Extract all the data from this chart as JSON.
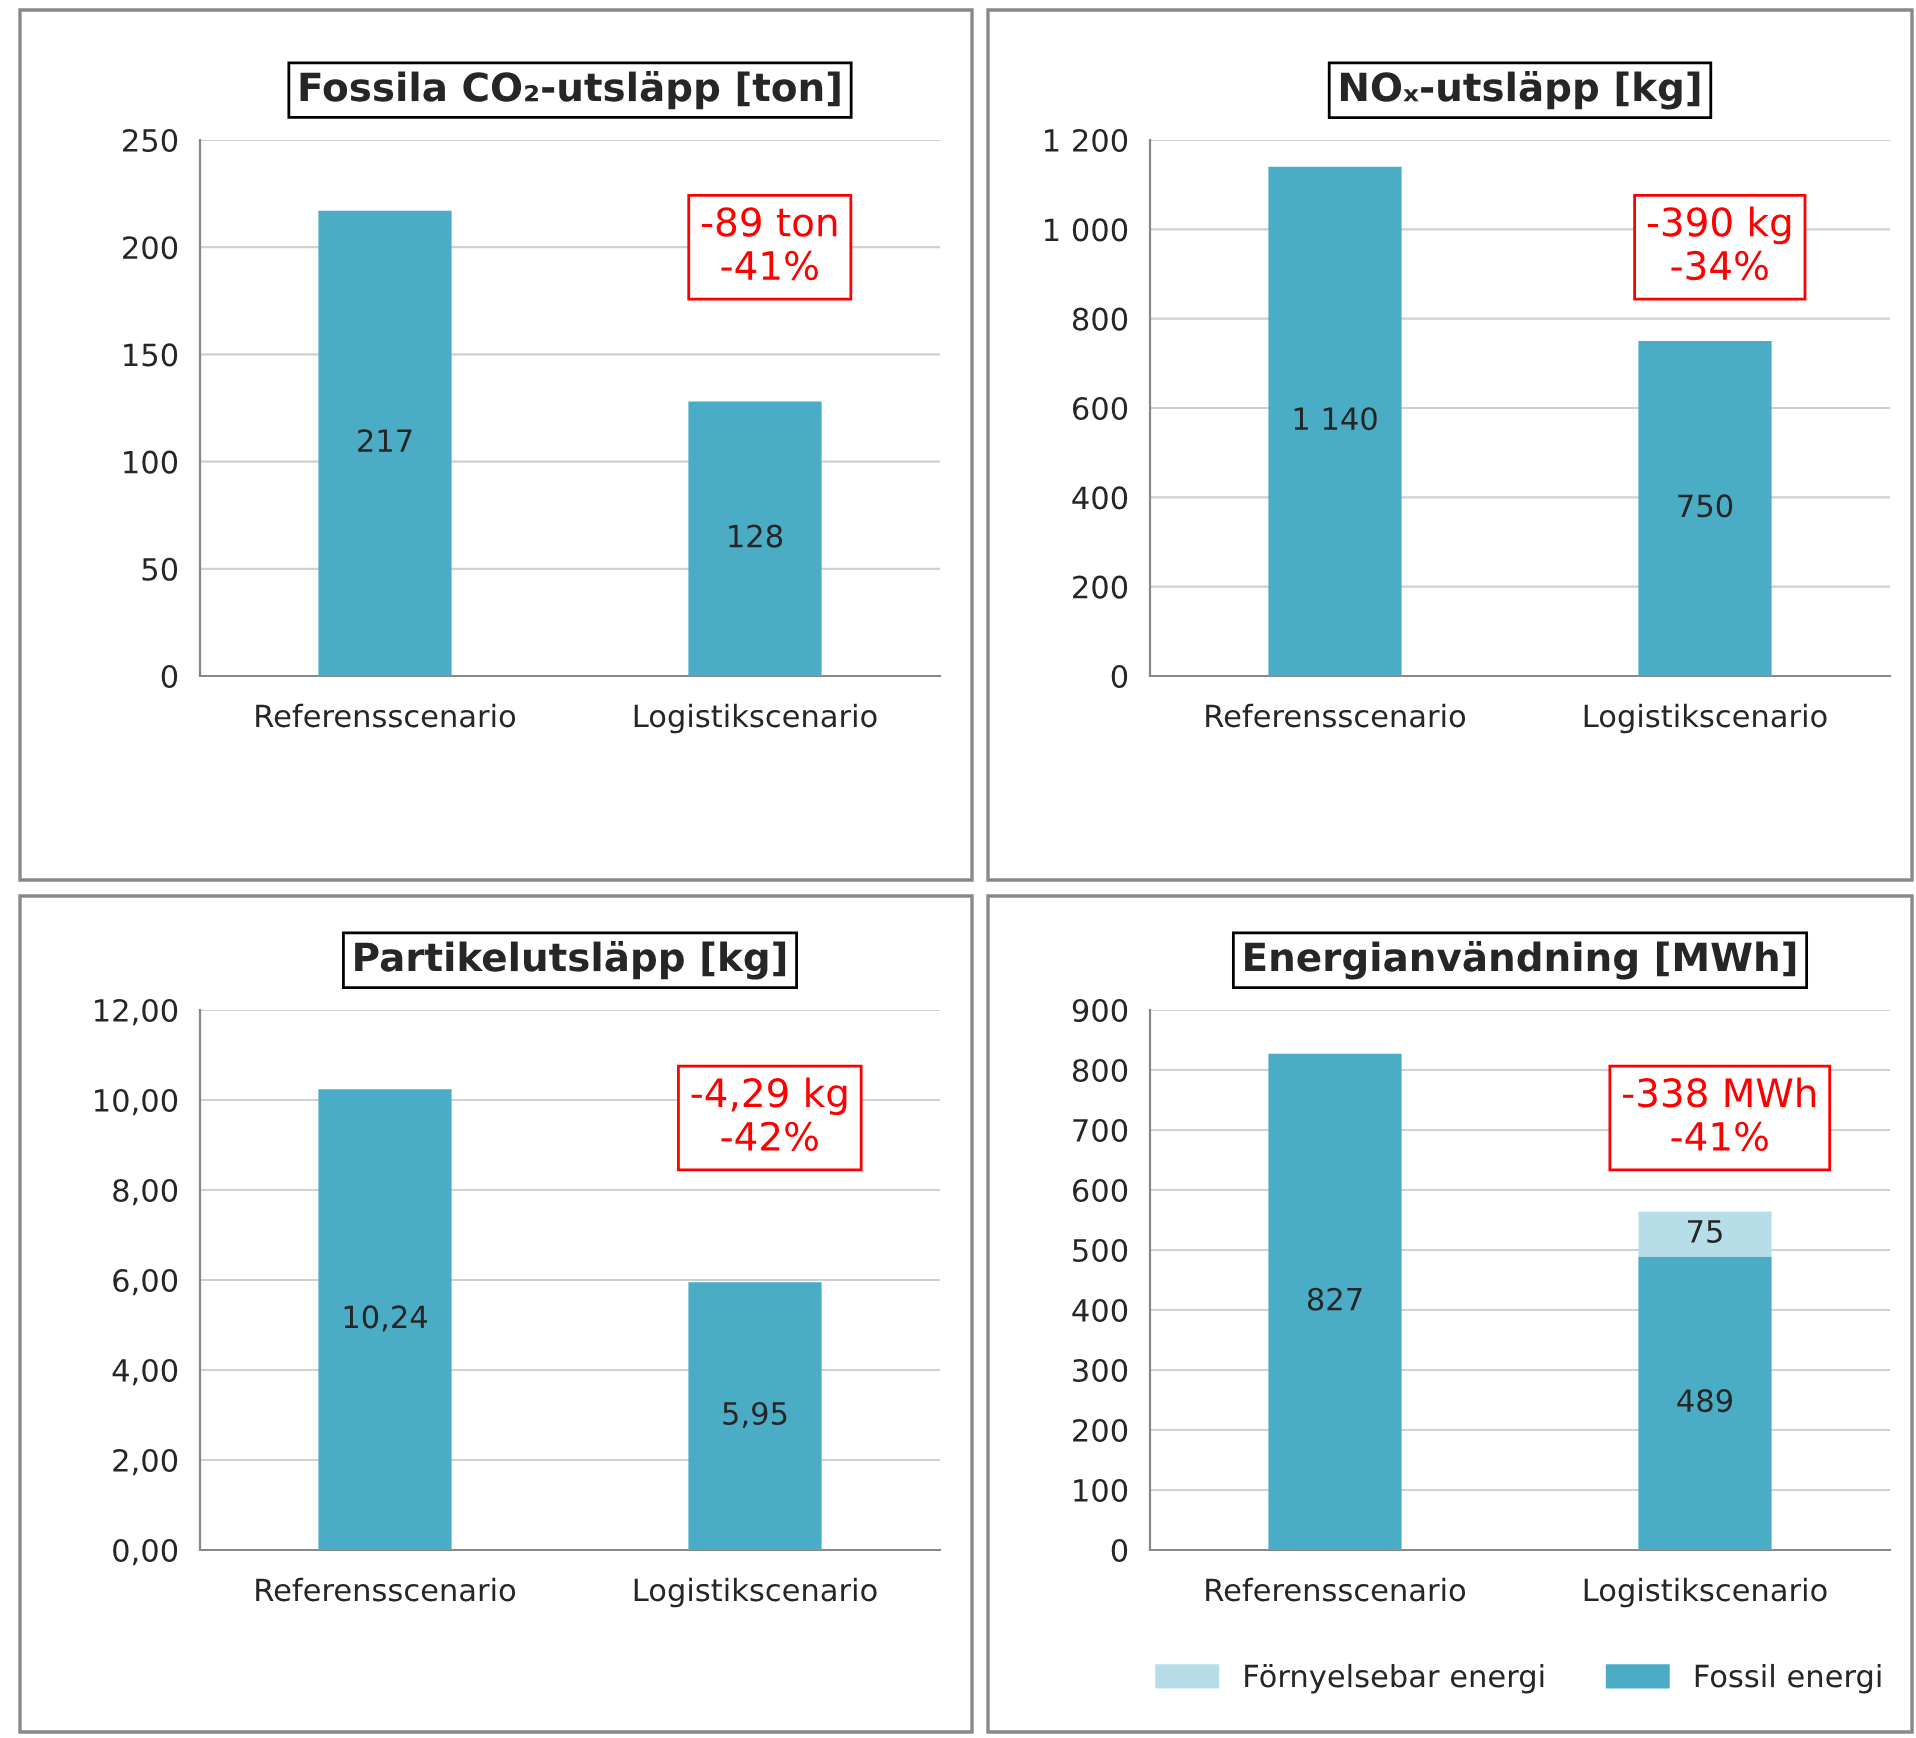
{
  "chart_data": [
    {
      "type": "bar",
      "title": "Fossila CO₂-utsläpp [ton]",
      "categories": [
        "Referensscenario",
        "Logistikscenario"
      ],
      "series": [
        {
          "color": "#4bacc6",
          "values": [
            217,
            128
          ],
          "value_labels": [
            "217",
            "128"
          ]
        }
      ],
      "ylim": [
        0,
        250
      ],
      "yticks": [
        0,
        50,
        100,
        150,
        200,
        250
      ],
      "grid": "y",
      "legend": false,
      "annotations": [
        "-89 ton\n-41%"
      ]
    },
    {
      "type": "bar",
      "title": "NOₓ-utsläpp [kg]",
      "categories": [
        "Referensscenario",
        "Logistikscenario"
      ],
      "series": [
        {
          "color": "#4bacc6",
          "values": [
            1140,
            750
          ],
          "value_labels": [
            "1 140",
            "750"
          ]
        }
      ],
      "ylim": [
        0,
        1200
      ],
      "yticks": [
        0,
        200,
        400,
        600,
        800,
        {
          "value": 1000,
          "label": "1 000"
        },
        {
          "value": 1200,
          "label": "1 200"
        }
      ],
      "grid": "y",
      "legend": false,
      "annotations": [
        "-390 kg\n-34%"
      ]
    },
    {
      "type": "bar",
      "title": "Partikelutsläpp [kg]",
      "categories": [
        "Referensscenario",
        "Logistikscenario"
      ],
      "series": [
        {
          "color": "#4bacc6",
          "values": [
            10.24,
            5.95
          ],
          "value_labels": [
            "10,24",
            "5,95"
          ]
        }
      ],
      "ylim": [
        0,
        12
      ],
      "yticks": [
        {
          "value": 0,
          "label": "0,00"
        },
        {
          "value": 2,
          "label": "2,00"
        },
        {
          "value": 4,
          "label": "4,00"
        },
        {
          "value": 6,
          "label": "6,00"
        },
        {
          "value": 8,
          "label": "8,00"
        },
        {
          "value": 10,
          "label": "10,00"
        },
        {
          "value": 12,
          "label": "12,00"
        }
      ],
      "grid": "y",
      "legend": false,
      "annotations": [
        "-4,29 kg\n-42%"
      ]
    },
    {
      "type": "bar",
      "stacked": true,
      "title": "Energianvändning [MWh]",
      "categories": [
        "Referensscenario",
        "Logistikscenario"
      ],
      "series": [
        {
          "name": "Fossil energi",
          "color": "#4bacc6",
          "values": [
            827,
            489
          ],
          "value_labels": [
            "827",
            "489"
          ]
        },
        {
          "name": "Förnyelsebar energi",
          "color": "#b7dee8",
          "values": [
            null,
            75
          ],
          "value_labels": [
            null,
            "75"
          ]
        }
      ],
      "ylim": [
        0,
        900
      ],
      "yticks": [
        0,
        100,
        200,
        300,
        400,
        500,
        600,
        700,
        800,
        900
      ],
      "grid": "y",
      "legend": "bottom",
      "annotations": [
        "-338 MWh\n-41%"
      ]
    }
  ]
}
